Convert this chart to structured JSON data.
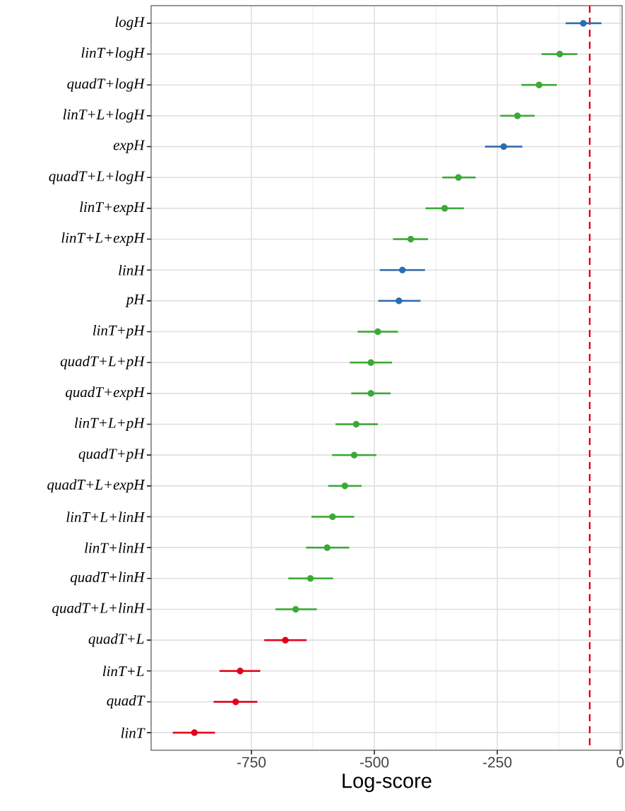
{
  "chart_data": {
    "type": "scatter",
    "orientation": "horizontal",
    "xlabel": "Log-score",
    "categories": [
      "logH",
      "linT+logH",
      "quadT+logH",
      "linT+L+logH",
      "expH",
      "quadT+L+logH",
      "linT+expH",
      "linT+L+expH",
      "linH",
      "pH",
      "linT+pH",
      "quadT+L+pH",
      "quadT+expH",
      "linT+L+pH",
      "quadT+pH",
      "quadT+L+expH",
      "linT+L+linH",
      "linT+linH",
      "quadT+linH",
      "quadT+L+linH",
      "quadT+L",
      "linT+L",
      "quadT",
      "linT"
    ],
    "values": [
      -75,
      -123,
      -165,
      -209,
      -237,
      -329,
      -357,
      -426,
      -443,
      -450,
      -493,
      -507,
      -507,
      -537,
      -541,
      -560,
      -585,
      -596,
      -630,
      -660,
      -681,
      -773,
      -782,
      -866
    ],
    "errors": [
      [
        -111,
        -38
      ],
      [
        -160,
        -87
      ],
      [
        -201,
        -129
      ],
      [
        -244,
        -174
      ],
      [
        -275,
        -199
      ],
      [
        -362,
        -294
      ],
      [
        -396,
        -318
      ],
      [
        -462,
        -391
      ],
      [
        -489,
        -397
      ],
      [
        -492,
        -406
      ],
      [
        -534,
        -452
      ],
      [
        -550,
        -464
      ],
      [
        -547,
        -467
      ],
      [
        -579,
        -493
      ],
      [
        -586,
        -496
      ],
      [
        -594,
        -526
      ],
      [
        -628,
        -541
      ],
      [
        -639,
        -551
      ],
      [
        -675,
        -584
      ],
      [
        -701,
        -617
      ],
      [
        -724,
        -638
      ],
      [
        -815,
        -732
      ],
      [
        -827,
        -738
      ],
      [
        -910,
        -824
      ]
    ],
    "colors": [
      "#2c6db0",
      "#3aa935",
      "#3aa935",
      "#3aa935",
      "#2c6db0",
      "#3aa935",
      "#3aa935",
      "#3aa935",
      "#2c6db0",
      "#2c6db0",
      "#3aa935",
      "#3aa935",
      "#3aa935",
      "#3aa935",
      "#3aa935",
      "#3aa935",
      "#3aa935",
      "#3aa935",
      "#3aa935",
      "#3aa935",
      "#e3001b",
      "#e3001b",
      "#e3001b",
      "#e3001b"
    ],
    "xlim": [
      -954,
      4
    ],
    "xticks": [
      -750,
      -500,
      -250,
      0
    ],
    "ref_lines": [
      {
        "axis": "x",
        "value": -62,
        "color": "#e3001b",
        "line_style": "dashed"
      }
    ],
    "grid": true
  }
}
